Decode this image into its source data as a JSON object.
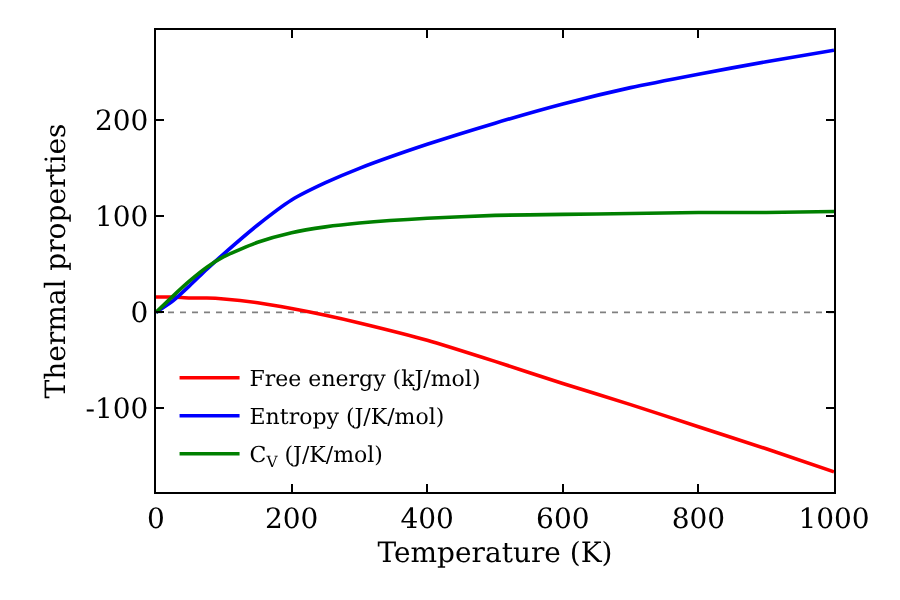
{
  "chart_data": {
    "type": "line",
    "xlabel": "Temperature (K)",
    "ylabel": "Thermal properties",
    "x": [
      0,
      25,
      50,
      75,
      100,
      150,
      200,
      250,
      300,
      400,
      500,
      600,
      700,
      800,
      900,
      1000
    ],
    "series": [
      {
        "name": "Free energy (kJ/mol)",
        "color": "#ff0000",
        "values": [
          16,
          16,
          15,
          15,
          14,
          10,
          4,
          -3,
          -11,
          -29,
          -51,
          -74,
          -96,
          -119,
          -142,
          -166
        ]
      },
      {
        "name": "Entropy (J/K/mol)",
        "color": "#0000ff",
        "values": [
          0,
          12,
          28,
          45,
          61,
          91,
          117,
          135,
          150,
          175,
          197,
          217,
          234,
          248,
          261,
          273
        ]
      },
      {
        "name": "C$_{V}$ (J/K/mol)",
        "color": "#008000",
        "values": [
          0,
          17,
          33,
          47,
          58,
          73,
          83,
          89,
          93,
          98,
          101,
          102,
          103,
          104,
          104,
          105
        ]
      }
    ],
    "xlim": [
      0,
      1000
    ],
    "xticks": [
      0,
      200,
      400,
      600,
      800,
      1000
    ],
    "ylim": [
      -187,
      294
    ],
    "yticks": [
      -100,
      0,
      100,
      200
    ],
    "ref_lines": [
      {
        "axis": "y",
        "value": 0,
        "color": "#808080",
        "line_style": "dotted"
      }
    ],
    "grid": false,
    "legend": "bottom left",
    "marker": "none",
    "line_style": "solid"
  }
}
